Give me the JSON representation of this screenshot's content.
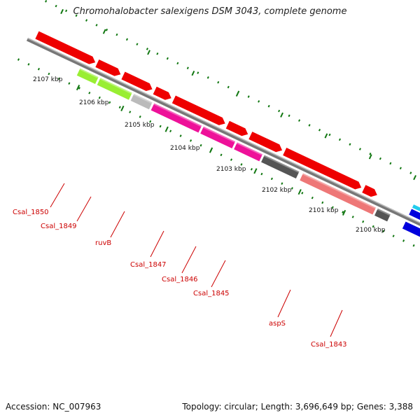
{
  "title": "Chromohalobacter salexigens DSM 3043, complete genome",
  "footer": {
    "accession": "Accession: NC_007963",
    "summary": "Topology: circular; Length: 3,696,649 bp; Genes: 3,388"
  },
  "ticks": [
    "2107 kbp",
    "2106 kbp",
    "2105 kbp",
    "2104 kbp",
    "2103 kbp",
    "2102 kbp",
    "2101 kbp",
    "2100 kbp"
  ],
  "genes": [
    "Csal_1850",
    "Csal_1849",
    "ruvB",
    "Csal_1847",
    "Csal_1846",
    "Csal_1845",
    "aspS",
    "Csal_1843"
  ],
  "colors": {
    "forward_cds": "#ee0000",
    "lime": "#99ee33",
    "magenta": "#ee1199",
    "dark_gray": "#555555",
    "salmon": "#ee7777",
    "blue": "#0000dd",
    "cyan": "#22ccee",
    "backbone": "#777777",
    "ruler": "#117711"
  }
}
